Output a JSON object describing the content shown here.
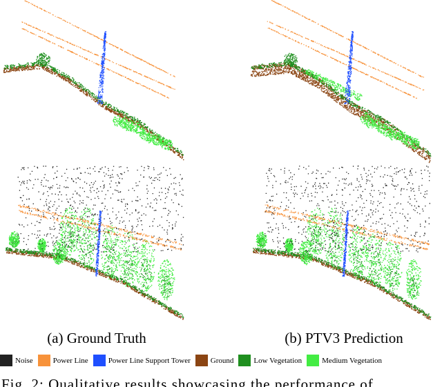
{
  "subfigures": [
    {
      "label": "(a) Ground Truth"
    },
    {
      "label": "(b) PTV3 Prediction"
    }
  ],
  "legend": [
    "Noise",
    "Power Line",
    "Power Line Support Tower",
    "Ground",
    "Low Vegetation",
    "Medium Vegetation"
  ],
  "caption": "Fig. 2: Qualitative results showcasing the performance of"
}
